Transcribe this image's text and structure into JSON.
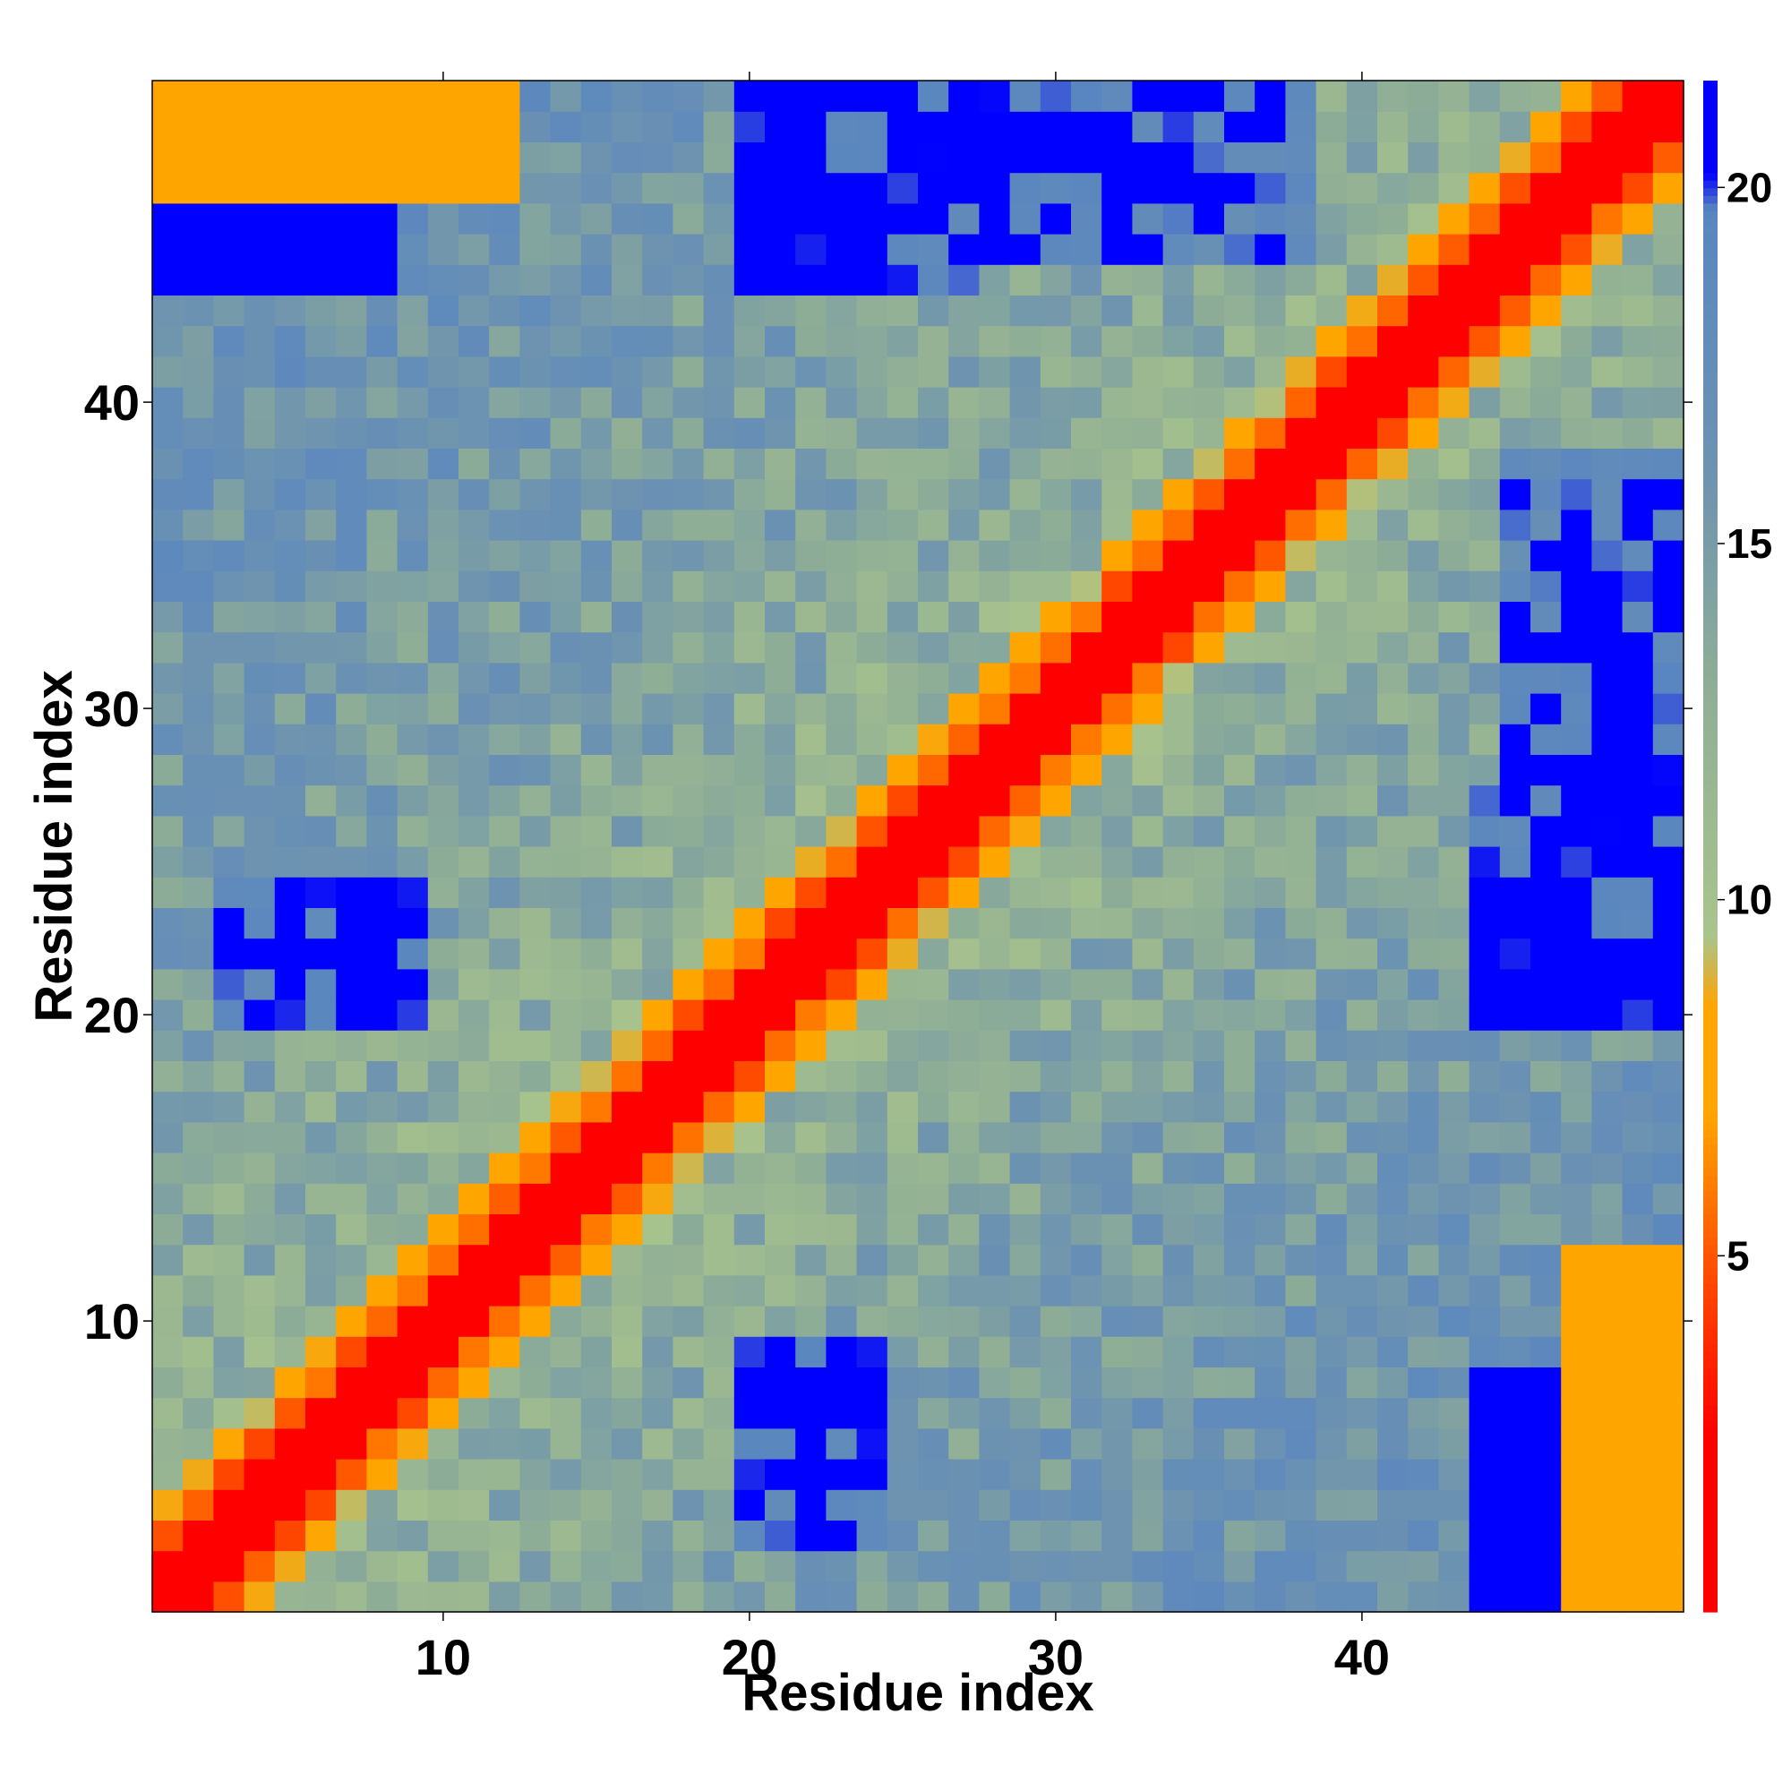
{
  "chart_data": {
    "type": "heatmap",
    "title": "",
    "xlabel": "Residue index",
    "ylabel": "Residue index",
    "n_residues": 50,
    "xlim": [
      0.5,
      50.5
    ],
    "ylim": [
      0.5,
      50.5
    ],
    "x_ticks": [
      10,
      20,
      30,
      40
    ],
    "y_ticks": [
      10,
      20,
      30,
      40
    ],
    "colorbar": {
      "range": [
        0,
        21.5
      ],
      "ticks": [
        5,
        10,
        15,
        20
      ],
      "stops": [
        {
          "value": 0,
          "color": "#ff0000"
        },
        {
          "value": 2.5,
          "color": "#ff0000"
        },
        {
          "value": 5,
          "color": "#ff5500"
        },
        {
          "value": 7,
          "color": "#ffa500"
        },
        {
          "value": 8.5,
          "color": "#ffa500"
        },
        {
          "value": 9.5,
          "color": "#a9c48c"
        },
        {
          "value": 13,
          "color": "#8fae96"
        },
        {
          "value": 16,
          "color": "#6d93b0"
        },
        {
          "value": 19.7,
          "color": "#5a86c0"
        },
        {
          "value": 20.2,
          "color": "#0000ff"
        },
        {
          "value": 21.5,
          "color": "#0000ff"
        }
      ]
    },
    "notes": "Symmetric residue-residue distance map; red diagonal band (distance < ~4) running from bottom-left to top-right, blue blocks (distance > 20) between distant segments."
  }
}
